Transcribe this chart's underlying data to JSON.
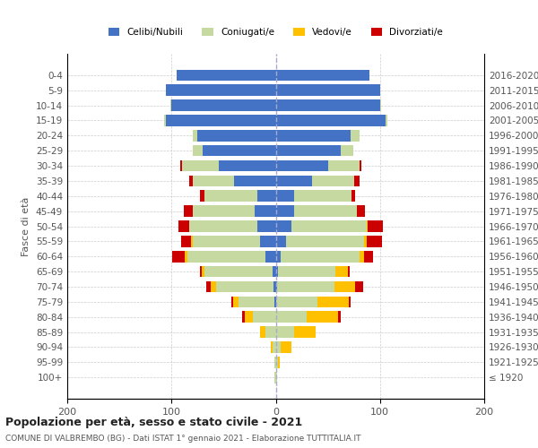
{
  "age_groups": [
    "100+",
    "95-99",
    "90-94",
    "85-89",
    "80-84",
    "75-79",
    "70-74",
    "65-69",
    "60-64",
    "55-59",
    "50-54",
    "45-49",
    "40-44",
    "35-39",
    "30-34",
    "25-29",
    "20-24",
    "15-19",
    "10-14",
    "5-9",
    "0-4"
  ],
  "birth_years": [
    "≤ 1920",
    "1921-1925",
    "1926-1930",
    "1931-1935",
    "1936-1940",
    "1941-1945",
    "1946-1950",
    "1951-1955",
    "1956-1960",
    "1961-1965",
    "1966-1970",
    "1971-1975",
    "1976-1980",
    "1981-1985",
    "1986-1990",
    "1991-1995",
    "1996-2000",
    "2001-2005",
    "2006-2010",
    "2011-2015",
    "2016-2020"
  ],
  "male": {
    "celibi": [
      0,
      0,
      0,
      0,
      0,
      1,
      2,
      3,
      10,
      15,
      18,
      20,
      18,
      40,
      55,
      70,
      75,
      105,
      100,
      105,
      95
    ],
    "coniugati": [
      1,
      1,
      3,
      10,
      22,
      35,
      55,
      65,
      75,
      65,
      65,
      60,
      50,
      40,
      35,
      10,
      5,
      2,
      1,
      0,
      0
    ],
    "vedovi": [
      0,
      0,
      2,
      5,
      8,
      5,
      5,
      3,
      2,
      1,
      0,
      0,
      0,
      0,
      0,
      0,
      0,
      0,
      0,
      0,
      0
    ],
    "divorziati": [
      0,
      0,
      0,
      0,
      2,
      2,
      5,
      2,
      12,
      10,
      10,
      8,
      5,
      3,
      2,
      0,
      0,
      0,
      0,
      0,
      0
    ]
  },
  "female": {
    "nubili": [
      0,
      0,
      0,
      0,
      0,
      0,
      1,
      2,
      5,
      10,
      15,
      18,
      18,
      35,
      50,
      62,
      72,
      105,
      100,
      100,
      90
    ],
    "coniugate": [
      1,
      2,
      5,
      18,
      30,
      40,
      55,
      55,
      75,
      75,
      72,
      60,
      55,
      40,
      30,
      12,
      8,
      2,
      1,
      0,
      0
    ],
    "vedove": [
      0,
      2,
      10,
      20,
      30,
      30,
      20,
      12,
      5,
      2,
      1,
      0,
      0,
      0,
      0,
      0,
      0,
      0,
      0,
      0,
      0
    ],
    "divorziate": [
      0,
      0,
      0,
      0,
      2,
      2,
      8,
      2,
      8,
      15,
      15,
      8,
      3,
      5,
      2,
      0,
      0,
      0,
      0,
      0,
      0
    ]
  },
  "colors": {
    "celibi": "#4472c4",
    "coniugati": "#c5d9a0",
    "vedovi": "#ffc000",
    "divorziati": "#cc0000"
  },
  "title": "Popolazione per età, sesso e stato civile - 2021",
  "subtitle": "COMUNE DI VALBREMBO (BG) - Dati ISTAT 1° gennaio 2021 - Elaborazione TUTTITALIA.IT",
  "ylabel_left": "Fasce di età",
  "xlim": 200,
  "background_color": "#ffffff",
  "grid_color": "#cccccc",
  "legend_labels": [
    "Celibi/Nubili",
    "Coniugati/e",
    "Vedovi/e",
    "Divorziati/e"
  ]
}
